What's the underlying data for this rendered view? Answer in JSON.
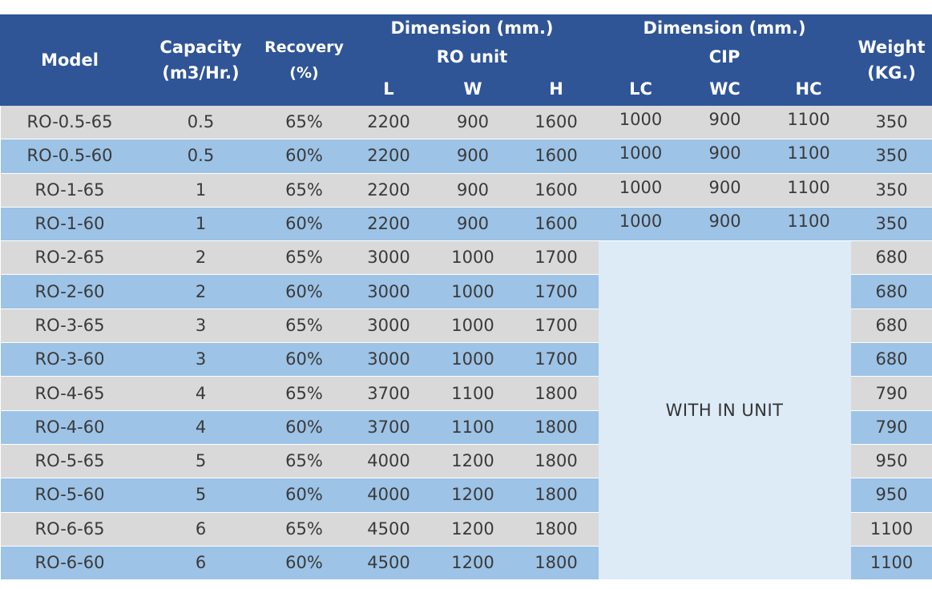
{
  "headers": {
    "model": "Model",
    "capacity_line1": "Capacity",
    "capacity_line2": "(m3/Hr.)",
    "recovery_line1": "Recovery",
    "recovery_line2": "(%)",
    "ro_dimension": "Dimension (mm.)",
    "ro_unit": "RO unit",
    "cip_dimension": "Dimension (mm.)",
    "cip": "CIP",
    "weight_line1": "Weight",
    "weight_line2": "(KG.)",
    "sub": [
      "L",
      "W",
      "H",
      "LC",
      "WC",
      "HC"
    ]
  },
  "rows": [
    {
      "model": "RO-0.5-65",
      "capacity": "0.5",
      "recovery": "65%",
      "l": "2200",
      "w": "900",
      "h": "1600",
      "lc": "1000",
      "wc": "900",
      "hc": "1100",
      "weight": "350"
    },
    {
      "model": "RO-0.5-60",
      "capacity": "0.5",
      "recovery": "60%",
      "l": "2200",
      "w": "900",
      "h": "1600",
      "lc": "1000",
      "wc": "900",
      "hc": "1100",
      "weight": "350"
    },
    {
      "model": "RO-1-65",
      "capacity": "1",
      "recovery": "65%",
      "l": "2200",
      "w": "900",
      "h": "1600",
      "lc": "1000",
      "wc": "900",
      "hc": "1100",
      "weight": "350"
    },
    {
      "model": "RO-1-60",
      "capacity": "1",
      "recovery": "60%",
      "l": "2200",
      "w": "900",
      "h": "1600",
      "lc": "1000",
      "wc": "900",
      "hc": "1100",
      "weight": "350"
    },
    {
      "model": "RO-2-65",
      "capacity": "2",
      "recovery": "65%",
      "l": "3000",
      "w": "1000",
      "h": "1700",
      "weight": "680"
    },
    {
      "model": "RO-2-60",
      "capacity": "2",
      "recovery": "60%",
      "l": "3000",
      "w": "1000",
      "h": "1700",
      "weight": "680"
    },
    {
      "model": "RO-3-65",
      "capacity": "3",
      "recovery": "65%",
      "l": "3000",
      "w": "1000",
      "h": "1700",
      "weight": "680"
    },
    {
      "model": "RO-3-60",
      "capacity": "3",
      "recovery": "60%",
      "l": "3000",
      "w": "1000",
      "h": "1700",
      "weight": "680"
    },
    {
      "model": "RO-4-65",
      "capacity": "4",
      "recovery": "65%",
      "l": "3700",
      "w": "1100",
      "h": "1800",
      "weight": "790"
    },
    {
      "model": "RO-4-60",
      "capacity": "4",
      "recovery": "60%",
      "l": "3700",
      "w": "1100",
      "h": "1800",
      "weight": "790"
    },
    {
      "model": "RO-5-65",
      "capacity": "5",
      "recovery": "65%",
      "l": "4000",
      "w": "1200",
      "h": "1800",
      "weight": "950"
    },
    {
      "model": "RO-5-60",
      "capacity": "5",
      "recovery": "60%",
      "l": "4000",
      "w": "1200",
      "h": "1800",
      "weight": "950"
    },
    {
      "model": "RO-6-65",
      "capacity": "6",
      "recovery": "65%",
      "l": "4500",
      "w": "1200",
      "h": "1800",
      "weight": "1100"
    },
    {
      "model": "RO-6-60",
      "capacity": "6",
      "recovery": "60%",
      "l": "4500",
      "w": "1200",
      "h": "1800",
      "weight": "1100"
    }
  ],
  "merged_cip_text": "WITH IN UNIT",
  "colors": {
    "header_bg": "#2f5597",
    "row_gray": "#d9d9d9",
    "row_blue": "#9dc3e6",
    "merged_bg": "#ddebf7"
  }
}
